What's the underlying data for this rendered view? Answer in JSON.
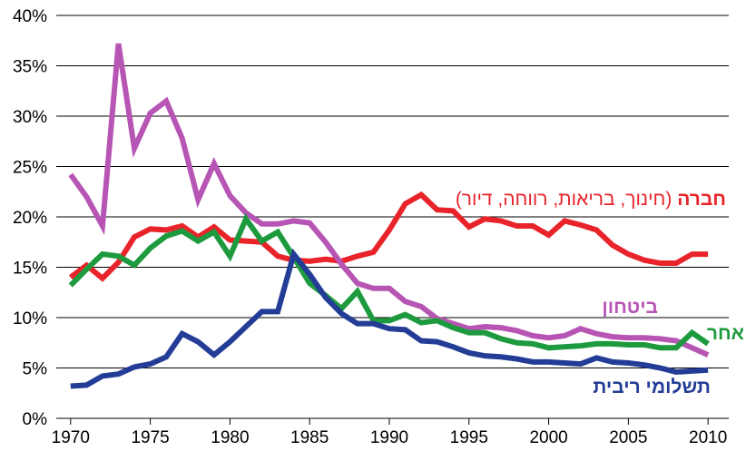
{
  "chart_data": {
    "type": "line",
    "x": [
      1970,
      1971,
      1972,
      1973,
      1974,
      1975,
      1976,
      1977,
      1978,
      1979,
      1980,
      1981,
      1982,
      1983,
      1984,
      1985,
      1986,
      1987,
      1988,
      1989,
      1990,
      1991,
      1992,
      1993,
      1994,
      1995,
      1996,
      1997,
      1998,
      1999,
      2000,
      2001,
      2002,
      2003,
      2004,
      2005,
      2006,
      2007,
      2008,
      2009,
      2010
    ],
    "series": [
      {
        "name": "חברה",
        "description": "(חינוך, בריאות, רווחה, דיור)",
        "color": "#e8242a",
        "values": [
          14,
          15.2,
          13.9,
          15.5,
          18,
          18.8,
          18.7,
          19.1,
          18,
          19,
          17.7,
          17.6,
          17.5,
          16.1,
          15.7,
          15.6,
          15.8,
          15.6,
          16.1,
          16.5,
          18.7,
          21.3,
          22.2,
          20.7,
          20.6,
          19,
          19.8,
          19.6,
          19.1,
          19.1,
          18.2,
          19.6,
          19.2,
          18.7,
          17.2,
          16.3,
          15.7,
          15.4,
          15.4,
          16.3,
          16.3
        ]
      },
      {
        "name": "ביטחון",
        "color": "#b755b4",
        "values": [
          24.2,
          22,
          19.1,
          37.2,
          26.8,
          30.3,
          31.5,
          27.8,
          21.7,
          25.3,
          22.1,
          20.4,
          19.3,
          19.3,
          19.6,
          19.4,
          17.5,
          15.3,
          13.4,
          12.9,
          12.9,
          11.6,
          11.1,
          9.9,
          9.4,
          8.9,
          9.1,
          9,
          8.7,
          8.2,
          8,
          8.2,
          8.9,
          8.4,
          8.1,
          8,
          8,
          7.9,
          7.7,
          7,
          6.3
        ]
      },
      {
        "name": "אחר",
        "color": "#1e9a3e",
        "values": [
          13.2,
          14.8,
          16.3,
          16.1,
          15.2,
          16.9,
          18.1,
          18.6,
          17.6,
          18.5,
          16.1,
          19.8,
          17.6,
          18.5,
          16,
          13.4,
          12.2,
          10.9,
          12.6,
          9.7,
          9.7,
          10.3,
          9.5,
          9.7,
          9,
          8.5,
          8.5,
          7.9,
          7.5,
          7.4,
          7,
          7.1,
          7.2,
          7.4,
          7.4,
          7.3,
          7.3,
          7,
          7,
          8.5,
          7.4
        ]
      },
      {
        "name": "תשלומי ריבית",
        "color": "#233d97",
        "values": [
          3.2,
          3.3,
          4.2,
          4.4,
          5.1,
          5.4,
          6.1,
          8.4,
          7.6,
          6.3,
          7.6,
          9.1,
          10.6,
          10.6,
          16.3,
          14.3,
          12,
          10.4,
          9.4,
          9.4,
          8.9,
          8.8,
          7.7,
          7.6,
          7.1,
          6.5,
          6.2,
          6.1,
          5.9,
          5.6,
          5.6,
          5.5,
          5.4,
          6,
          5.6,
          5.5,
          5.3,
          5,
          4.6,
          4.7,
          4.8
        ]
      }
    ],
    "xlim": [
      1969.1,
      2011.3
    ],
    "xticks": [
      1970,
      1975,
      1980,
      1985,
      1990,
      1995,
      2000,
      2005,
      2010
    ],
    "ylim": [
      0,
      40
    ],
    "yticks": [
      {
        "value": 0,
        "label": "0%"
      },
      {
        "value": 5,
        "label": "5%"
      },
      {
        "value": 10,
        "label": "10%"
      },
      {
        "value": 15,
        "label": "15%"
      },
      {
        "value": 20,
        "label": "20%"
      },
      {
        "value": 25,
        "label": "25%"
      },
      {
        "value": 30,
        "label": "30%"
      },
      {
        "value": 35,
        "label": "35%"
      },
      {
        "value": 40,
        "label": "40%"
      }
    ],
    "grid": true
  }
}
